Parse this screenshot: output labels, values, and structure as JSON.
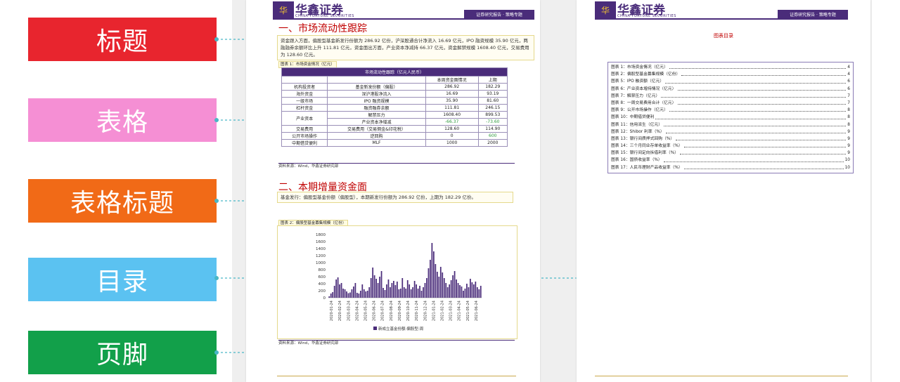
{
  "legend": [
    {
      "label": "标题",
      "color": "#e8252e"
    },
    {
      "label": "表格",
      "color": "#f58fd4"
    },
    {
      "label": "表格标题",
      "color": "#f16a17"
    },
    {
      "label": "目录",
      "color": "#5bc2f1"
    },
    {
      "label": "页脚",
      "color": "#12a04a"
    }
  ],
  "header": {
    "logo_text": "华鑫证券",
    "logo_sub": "CHINA FORTUNE SECURITIES",
    "logo_mark": "华",
    "tagline": "证券研究报告 · 策略专题"
  },
  "left_page": {
    "section1_title": "一、市场流动性跟踪",
    "section1_text": "资金跟入方面，偏股型基金新发行份额为 286.92 亿份，沪深股通合计净流入 16.69 亿元，IPO 融资规模 35.90 亿元，两融融券余额环比上升 111.81 亿元，资金面出方面，产业资本净减持 66.37 亿元，资金解禁规模 1608.40 亿元，交易费用为 128.60 亿元。",
    "table_caption": "图表 1：市场资金情况（亿元）",
    "table": {
      "title": "市场流动性跟踪（亿元人民币）",
      "col_this": "本周资金面情况",
      "col_last": "上期",
      "rows": [
        {
          "cat": "机构投资者",
          "item": "基金新发份额（偏股）",
          "this": "286.92",
          "last": "182.29",
          "neg": false
        },
        {
          "cat": "海外资金",
          "item": "深沪港股净流入",
          "this": "16.69",
          "last": "93.19",
          "neg": false
        },
        {
          "cat": "一级市场",
          "item": "IPO 融资规模",
          "this": "35.90",
          "last": "81.60",
          "neg": false
        },
        {
          "cat": "杠杆资金",
          "item": "融资融券余额",
          "this": "111.81",
          "last": "246.15",
          "neg": false
        },
        {
          "cat": "产业资本",
          "item": "解禁压力",
          "this": "1608.40",
          "last": "899.53",
          "neg": false
        },
        {
          "cat": "",
          "item": "产业资本净增减",
          "this": "-66.37",
          "last": "-73.60",
          "neg": true
        },
        {
          "cat": "交易费用",
          "item": "交易费用（交易佣金&印花税）",
          "this": "128.60",
          "last": "114.90",
          "neg": false
        },
        {
          "cat": "公开市场操作",
          "item": "逆回购",
          "this": "0",
          "last": "600",
          "neg": true
        },
        {
          "cat": "中期借贷便利",
          "item": "MLF",
          "this": "1000",
          "last": "2000",
          "neg": false
        }
      ]
    },
    "source1": "资料来源：Wind，华鑫证券研究部",
    "section2_title": "二、本期增量资金面",
    "section2_text": "基金发行：偏股型基金份额（偏股型），本期新发行份额为 286.92 亿份，上期为 182.29 亿份。",
    "chart_caption": "图表 2：偏股型基金募集规模（亿份）",
    "source2": "资料来源：Wind，华鑫证券研究部"
  },
  "right_page": {
    "toc_title": "图表目录",
    "toc": [
      {
        "label": "图表 1：市场资金情况（亿元）",
        "page": "4"
      },
      {
        "label": "图表 2：偏股型基金募集规模（亿份）",
        "page": "4"
      },
      {
        "label": "图表 5：IPO 融资额（亿元）",
        "page": "6"
      },
      {
        "label": "图表 6：产业资本增持情况（亿元）",
        "page": "6"
      },
      {
        "label": "图表 7：解禁压力（亿元）",
        "page": "7"
      },
      {
        "label": "图表 8：一周交易费用合计（亿元）",
        "page": "7"
      },
      {
        "label": "图表 9：公开市场操作（亿元）",
        "page": "8"
      },
      {
        "label": "图表 10：中期借贷便利",
        "page": "8"
      },
      {
        "label": "图表 11：信用派生（亿元）",
        "page": "8"
      },
      {
        "label": "图表 12：Shibor 利率（%）",
        "page": "9"
      },
      {
        "label": "图表 13：银行间质押式回购（%）",
        "page": "9"
      },
      {
        "label": "图表 14：三个月同业存单收益率（%）",
        "page": "9"
      },
      {
        "label": "图表 15：银行间定向拆借利率（%）",
        "page": "9"
      },
      {
        "label": "图表 16：国债收益率（%）",
        "page": "10"
      },
      {
        "label": "图表 17：人民币理财产品收益率（%）",
        "page": "10"
      }
    ]
  },
  "chart_data": {
    "type": "bar",
    "title": "",
    "xlabel": "",
    "ylabel": "",
    "ylim": [
      0,
      1800
    ],
    "yticks": [
      "1800",
      "1600",
      "1400",
      "1200",
      "1000",
      "800",
      "600",
      "400",
      "200",
      "0"
    ],
    "x_ticks": [
      "2020-01-24",
      "2020-02-24",
      "2020-03-24",
      "2020-04-24",
      "2020-05-24",
      "2020-06-24",
      "2020-07-24",
      "2020-08-24",
      "2020-09-24",
      "2020-10-24",
      "2020-11-24",
      "2020-12-24",
      "2021-01-24",
      "2021-02-24",
      "2021-03-24",
      "2021-04-24",
      "2021-05-24",
      "2021-06-24"
    ],
    "legend": "新成立基金份额:偏股型:周",
    "series": [
      {
        "name": "新成立基金份额:偏股型:周",
        "values": [
          40,
          120,
          160,
          340,
          520,
          580,
          380,
          420,
          260,
          240,
          180,
          130,
          150,
          240,
          320,
          420,
          140,
          120,
          200,
          380,
          240,
          180,
          200,
          300,
          560,
          860,
          640,
          540,
          420,
          600,
          760,
          280,
          220,
          380,
          520,
          300,
          420,
          480,
          360,
          460,
          240,
          260,
          560,
          300,
          260,
          500,
          380,
          240,
          300,
          480,
          380,
          260,
          340,
          200,
          300,
          420,
          560,
          840,
          1080,
          1560,
          1320,
          960,
          740,
          600,
          880,
          720,
          560,
          420,
          300,
          380,
          500,
          640,
          760,
          520,
          420,
          360,
          320,
          200,
          260,
          400,
          300,
          540,
          440,
          380,
          460,
          300,
          240,
          340
        ]
      }
    ]
  }
}
